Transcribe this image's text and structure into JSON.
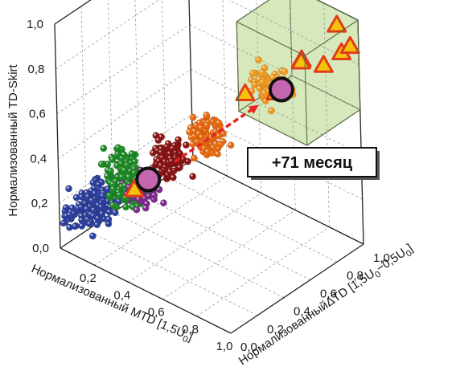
{
  "chart_data": {
    "type": "scatter",
    "dimensions": 3,
    "title": "",
    "zlabel": "Нормализованный TD-Skirt",
    "xlabel_main": "Нормализованный MTD [1,5U",
    "xlabel_sub": "0",
    "xlabel_end": "]",
    "ylabel_main": "НормализованныйΔTD [1,5U",
    "ylabel_sub1": "0",
    "ylabel_mid": "−0,5U",
    "ylabel_sub2": "0",
    "ylabel_end": "]",
    "x_ticks": [
      "0,2",
      "0,4",
      "0,6",
      "0,8",
      "1,0"
    ],
    "y_ticks": [
      "0,0",
      "0,2",
      "0,4",
      "0,6",
      "0,8",
      "1,0"
    ],
    "z_ticks": [
      "0,0",
      "0,2",
      "0,4",
      "0,6",
      "0,8",
      "1,0"
    ],
    "xlim": [
      0,
      1
    ],
    "ylim": [
      0,
      1
    ],
    "zlim": [
      0,
      1
    ],
    "grid": true,
    "highlight_region": {
      "x": [
        0.6,
        1.0
      ],
      "y": [
        0.6,
        1.0
      ],
      "z": [
        0.6,
        1.0
      ],
      "color": "#c8e0a6"
    },
    "series": [
      {
        "color": "#2e3f9e",
        "clusters": [
          {
            "x": 0.12,
            "y": 0.12,
            "z": 0.2,
            "n": 150
          },
          {
            "x": 0.05,
            "y": 0.05,
            "z": 0.15,
            "n": 30
          }
        ]
      },
      {
        "color": "#1d8a25",
        "clusters": [
          {
            "x": 0.24,
            "y": 0.2,
            "z": 0.28,
            "n": 170
          },
          {
            "x": 0.18,
            "y": 0.26,
            "z": 0.34,
            "n": 50
          }
        ]
      },
      {
        "color": "#7d2b8e",
        "clusters": [
          {
            "x": 0.32,
            "y": 0.22,
            "z": 0.3,
            "n": 55
          }
        ]
      },
      {
        "color": "#8a1414",
        "clusters": [
          {
            "x": 0.4,
            "y": 0.32,
            "z": 0.42,
            "n": 120
          }
        ]
      },
      {
        "color": "#e86a10",
        "clusters": [
          {
            "x": 0.52,
            "y": 0.45,
            "z": 0.52,
            "n": 100
          }
        ]
      },
      {
        "color": "#f09a1e",
        "clusters": [
          {
            "x": 0.72,
            "y": 0.7,
            "z": 0.72,
            "n": 110
          }
        ]
      }
    ],
    "triangles": [
      {
        "x": 0.32,
        "y": 0.16,
        "z": 0.32
      },
      {
        "x": 0.6,
        "y": 0.65,
        "z": 0.66
      },
      {
        "x": 0.71,
        "y": 0.74,
        "z": 0.67
      },
      {
        "x": 0.78,
        "y": 0.85,
        "z": 0.8
      },
      {
        "x": 0.8,
        "y": 0.82,
        "z": 0.81
      },
      {
        "x": 0.95,
        "y": 0.8,
        "z": 0.86
      },
      {
        "x": 0.93,
        "y": 0.93,
        "z": 0.98
      },
      {
        "x": 0.97,
        "y": 0.91,
        "z": 0.88
      },
      {
        "x": 0.99,
        "y": 0.95,
        "z": 0.9
      }
    ],
    "centroids": [
      {
        "x": 0.34,
        "y": 0.24,
        "z": 0.34,
        "color": "#c466b0"
      },
      {
        "x": 0.76,
        "y": 0.72,
        "z": 0.71,
        "color": "#c466b0"
      }
    ],
    "annotation": {
      "text": "+71 месяц",
      "arrow_color": "#e8231f"
    }
  }
}
